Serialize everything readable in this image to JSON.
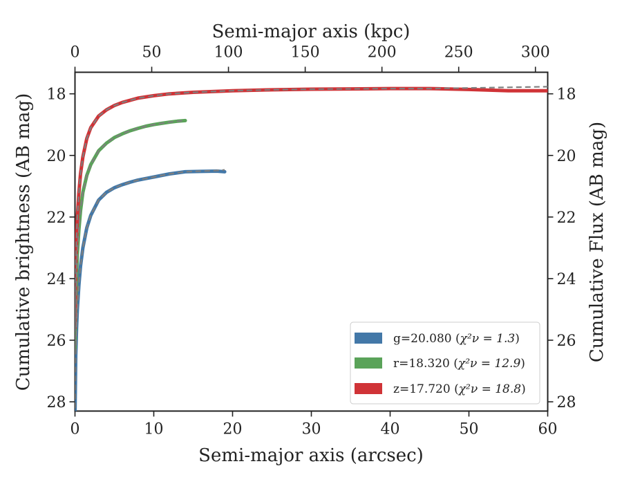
{
  "chart_data": {
    "type": "line",
    "xlabel": "Semi-major axis (arcsec)",
    "x2label": "Semi-major axis (kpc)",
    "ylabel": "Cumulative brightness (AB mag)",
    "y2label": "Cumulative Flux (AB mag)",
    "xlim": [
      0,
      60
    ],
    "x2lim": [
      0,
      308
    ],
    "ylim": [
      28.3,
      17.3
    ],
    "y_inverted": true,
    "x_ticks": [
      0,
      10,
      20,
      30,
      40,
      50,
      60
    ],
    "x2_ticks": [
      0,
      50,
      100,
      150,
      200,
      250,
      300
    ],
    "y_ticks": [
      18,
      20,
      22,
      24,
      26,
      28
    ],
    "grid": false,
    "legend_position": "lower-right",
    "series": [
      {
        "name": "g=20.080 (χ²ν = 1.3)",
        "band": "g",
        "mag": "g=20.080",
        "chi_label": "χ²ν = 1.3",
        "color": "#4378a8",
        "x": [
          0.0,
          0.1,
          0.2,
          0.3,
          0.5,
          0.7,
          1.0,
          1.5,
          2.0,
          3.0,
          4.0,
          5.0,
          6.0,
          7.0,
          8.0,
          9.0,
          10.0,
          12.0,
          14.0,
          16.0,
          18.0,
          19.0
        ],
        "y": [
          28.5,
          26.5,
          25.6,
          25.0,
          24.2,
          23.6,
          23.0,
          22.35,
          21.95,
          21.45,
          21.2,
          21.05,
          20.95,
          20.87,
          20.8,
          20.75,
          20.7,
          20.6,
          20.53,
          20.52,
          20.51,
          20.53
        ]
      },
      {
        "name": "r=18.320 (χ²ν = 12.9)",
        "band": "r",
        "mag": "r=18.320",
        "chi_label": "χ²ν = 12.9",
        "color": "#5aa359",
        "x": [
          0.0,
          0.1,
          0.2,
          0.3,
          0.5,
          0.7,
          1.0,
          1.5,
          2.0,
          3.0,
          4.0,
          5.0,
          6.0,
          7.0,
          8.0,
          9.0,
          10.0,
          11.0,
          12.0,
          13.0,
          14.0
        ],
        "y": [
          26.3,
          24.8,
          23.9,
          23.2,
          22.4,
          21.8,
          21.2,
          20.65,
          20.3,
          19.85,
          19.6,
          19.42,
          19.3,
          19.2,
          19.12,
          19.05,
          19.0,
          18.96,
          18.92,
          18.89,
          18.87
        ]
      },
      {
        "name": "z=17.720 (χ²ν = 18.8)",
        "band": "z",
        "mag": "z=17.720",
        "chi_label": "χ²ν = 18.8",
        "color": "#d03337",
        "x": [
          0.0,
          0.1,
          0.2,
          0.3,
          0.5,
          0.7,
          1.0,
          1.5,
          2.0,
          3.0,
          4.0,
          5.0,
          6.0,
          8.0,
          10.0,
          12.0,
          15.0,
          20.0,
          25.0,
          30.0,
          35.0,
          40.0,
          45.0,
          50.0,
          55.0,
          60.0
        ],
        "y": [
          25.6,
          23.5,
          22.7,
          22.0,
          21.2,
          20.6,
          20.05,
          19.45,
          19.1,
          18.72,
          18.52,
          18.38,
          18.28,
          18.14,
          18.06,
          18.0,
          17.95,
          17.9,
          17.87,
          17.85,
          17.84,
          17.83,
          17.83,
          17.86,
          17.9,
          17.9
        ]
      }
    ]
  },
  "colors": {
    "g": "#4378a8",
    "r": "#5aa359",
    "z": "#d03337",
    "model": "#7f7f7f",
    "axis": "#222222"
  }
}
